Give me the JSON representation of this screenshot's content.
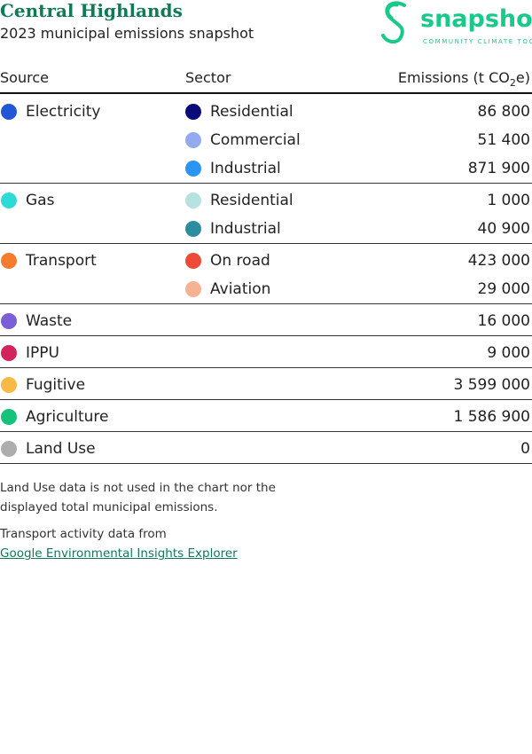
{
  "header": {
    "title": "Central Highlands",
    "subtitle": "2023 municipal emissions snapshot"
  },
  "logo": {
    "name": "snapshot",
    "tagline": "COMMUNITY CLIMATE TOOL"
  },
  "table": {
    "columns": [
      "Source",
      "Sector",
      {
        "text": "Emissions (t CO",
        "sub": "2",
        "tail": "e)"
      }
    ],
    "groups": [
      {
        "source": "Electricity",
        "color": "#2356d6",
        "sectors": [
          {
            "name": "Residential",
            "color": "#0a0a78",
            "value": "86 800"
          },
          {
            "name": "Commercial",
            "color": "#93a9f0",
            "value": "51 400"
          },
          {
            "name": "Industrial",
            "color": "#2a95f5",
            "value": "871 900"
          }
        ]
      },
      {
        "source": "Gas",
        "color": "#2ddad8",
        "sectors": [
          {
            "name": "Residential",
            "color": "#b6e2e2",
            "value": "1 000"
          },
          {
            "name": "Industrial",
            "color": "#2e8ca0",
            "value": "40 900"
          }
        ]
      },
      {
        "source": "Transport",
        "color": "#f57c2e",
        "sectors": [
          {
            "name": "On road",
            "color": "#ee4a35",
            "value": "423 000"
          },
          {
            "name": "Aviation",
            "color": "#f7b293",
            "value": "29 000"
          }
        ]
      },
      {
        "source": "Waste",
        "color": "#7b5fd6",
        "value": "16 000"
      },
      {
        "source": "IPPU",
        "color": "#d2245a",
        "value": "9 000"
      },
      {
        "source": "Fugitive",
        "color": "#f8b945",
        "value": "3 599 000"
      },
      {
        "source": "Agriculture",
        "color": "#14c27a",
        "value": "1 586 900"
      },
      {
        "source": "Land Use",
        "color": "#adadad",
        "value": "0"
      }
    ]
  },
  "notes": {
    "land_use": [
      "Land Use data is not used in the chart nor the",
      "displayed total municipal emissions."
    ],
    "transport": "Transport activity data from",
    "link": "Google Environmental Insights Explorer"
  }
}
